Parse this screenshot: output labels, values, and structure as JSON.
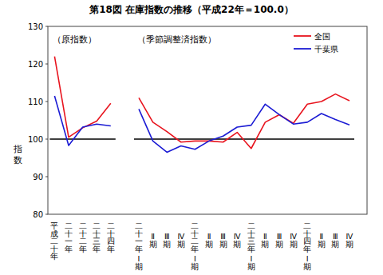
{
  "chart_data": {
    "type": "line",
    "title": "第18図 在庫指数の推移（平成22年＝100.0）",
    "y_label": "指数",
    "annotations": [
      "（原指数）",
      "（季節調整済指数）"
    ],
    "categories": [
      "平成二十年",
      "二十一年",
      "二十二年",
      "二十三年",
      "二十四年",
      null,
      "二十一年Ⅰ期",
      "Ⅱ期",
      "Ⅲ期",
      "Ⅳ期",
      "二十二年Ⅰ期",
      "Ⅱ期",
      "Ⅲ期",
      "Ⅳ期",
      "二十三年Ⅰ期",
      "Ⅱ期",
      "Ⅲ期",
      "Ⅳ期",
      "二十四年Ⅰ期",
      "Ⅱ期",
      "Ⅲ期",
      "Ⅳ期"
    ],
    "series": [
      {
        "name": "全国",
        "color": "#e8141e",
        "values": [
          122,
          100.5,
          103,
          104.8,
          109.5,
          null,
          111,
          104.5,
          102,
          99.2,
          99.5,
          99.5,
          99.2,
          101.8,
          97.5,
          104.5,
          106.5,
          104.2,
          109.3,
          110,
          112,
          110.2
        ]
      },
      {
        "name": "千葉県",
        "color": "#1c1cd4",
        "values": [
          111.5,
          98.3,
          103.2,
          104,
          103.5,
          null,
          108,
          99.5,
          96.5,
          98.2,
          97.3,
          99.5,
          100.8,
          103.2,
          103.7,
          109.3,
          106.5,
          104,
          104.5,
          106.8,
          105.2,
          103.8
        ]
      }
    ],
    "ylim": [
      80,
      130
    ],
    "yticks": [
      80,
      90,
      100,
      110,
      120,
      130
    ],
    "hline": 100,
    "legend": "top-right",
    "grid": false
  }
}
